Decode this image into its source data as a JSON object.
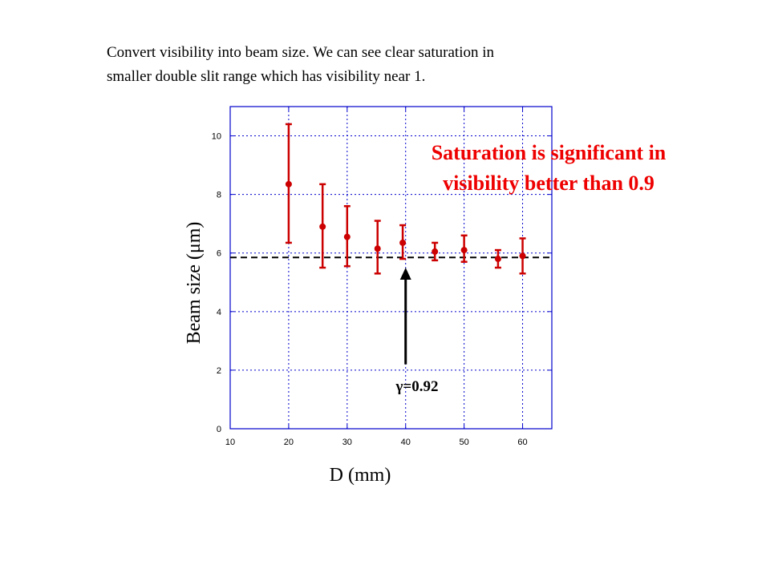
{
  "caption": {
    "line1": "Convert visibility into beam size.   We can see clear saturation  in",
    "line2": "smaller double slit range which has visibility near 1."
  },
  "chart_data": {
    "type": "scatter",
    "title": "",
    "xlabel": "D (mm)",
    "ylabel": "Beam size (μm)",
    "xlim": [
      10,
      65
    ],
    "ylim": [
      0,
      11
    ],
    "x_ticks": [
      10,
      20,
      30,
      40,
      50,
      60
    ],
    "y_ticks": [
      0,
      2,
      4,
      6,
      8,
      10
    ],
    "grid": true,
    "error_bars": true,
    "points": [
      {
        "x": 20,
        "y": 8.35,
        "y_low": 6.35,
        "y_high": 10.4
      },
      {
        "x": 25.8,
        "y": 6.9,
        "y_low": 5.5,
        "y_high": 8.35
      },
      {
        "x": 30,
        "y": 6.55,
        "y_low": 5.55,
        "y_high": 7.6
      },
      {
        "x": 35.2,
        "y": 6.15,
        "y_low": 5.3,
        "y_high": 7.1
      },
      {
        "x": 39.5,
        "y": 6.35,
        "y_low": 5.8,
        "y_high": 6.95
      },
      {
        "x": 45,
        "y": 6.05,
        "y_low": 5.75,
        "y_high": 6.35
      },
      {
        "x": 50,
        "y": 6.1,
        "y_low": 5.7,
        "y_high": 6.6
      },
      {
        "x": 55.8,
        "y": 5.8,
        "y_low": 5.5,
        "y_high": 6.1
      },
      {
        "x": 60,
        "y": 5.9,
        "y_low": 5.3,
        "y_high": 6.5
      }
    ],
    "reference_line": {
      "y": 5.85,
      "style": "dashed"
    },
    "annotations": {
      "note": "Saturation is significant in visibility better than 0.9",
      "note_line1": "Saturation is significant in",
      "note_line2": "visibility better than 0.9",
      "gamma": "γ=0.92",
      "arrow_x": 40,
      "arrow_from_y": 2.2,
      "arrow_to_y": 5.5
    },
    "colors": {
      "series": "#cc0000",
      "note": "#ee0000",
      "grid": "#0000cc",
      "frame": "#0000cc",
      "arrow": "#000000",
      "reference_line": "#000000"
    }
  }
}
